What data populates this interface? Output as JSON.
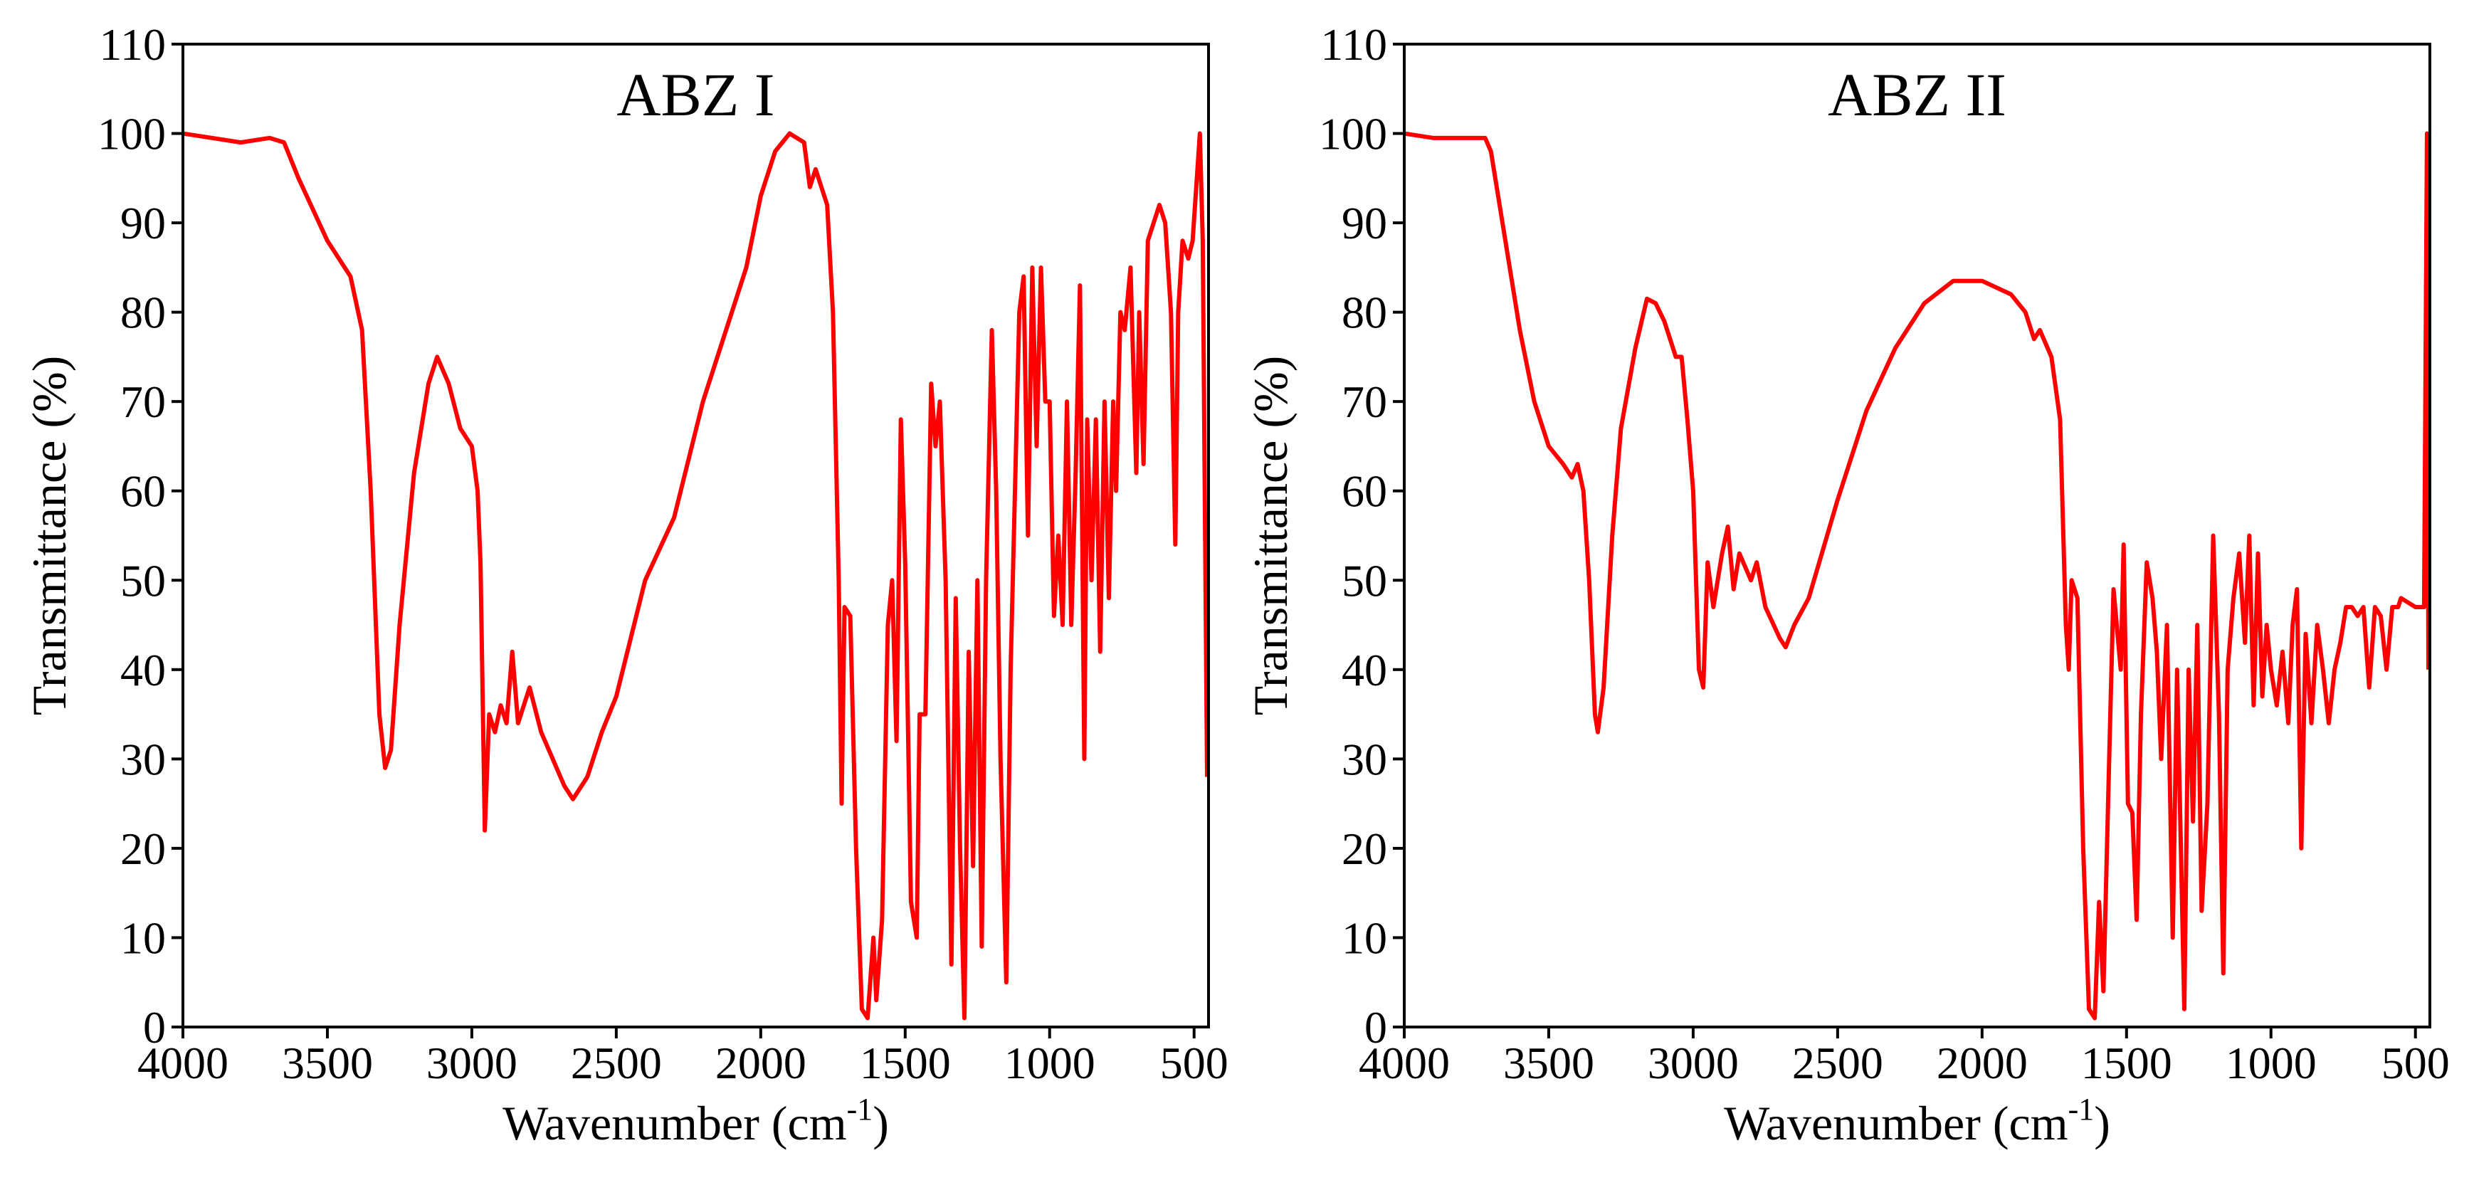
{
  "chart_data": [
    {
      "type": "line",
      "title": "ABZ I",
      "xlabel": [
        "Wavenumber (cm",
        "-1",
        ")"
      ],
      "ylabel": "Transmittance (%)",
      "x": [
        4000,
        3900,
        3800,
        3700,
        3650,
        3600,
        3500,
        3420,
        3380,
        3350,
        3320,
        3300,
        3280,
        3250,
        3200,
        3150,
        3120,
        3080,
        3040,
        3000,
        2980,
        2970,
        2955,
        2940,
        2920,
        2900,
        2880,
        2860,
        2840,
        2800,
        2760,
        2720,
        2680,
        2650,
        2600,
        2550,
        2500,
        2400,
        2300,
        2200,
        2100,
        2050,
        2000,
        1950,
        1900,
        1850,
        1830,
        1810,
        1790,
        1770,
        1750,
        1730,
        1720,
        1710,
        1690,
        1670,
        1650,
        1630,
        1610,
        1600,
        1580,
        1560,
        1545,
        1530,
        1515,
        1500,
        1480,
        1460,
        1450,
        1430,
        1410,
        1395,
        1380,
        1360,
        1340,
        1325,
        1310,
        1295,
        1280,
        1265,
        1250,
        1235,
        1220,
        1200,
        1185,
        1170,
        1150,
        1135,
        1120,
        1105,
        1090,
        1075,
        1060,
        1045,
        1030,
        1015,
        1000,
        985,
        970,
        955,
        940,
        925,
        910,
        895,
        880,
        870,
        855,
        840,
        825,
        810,
        795,
        780,
        770,
        755,
        740,
        720,
        700,
        690,
        675,
        660,
        640,
        620,
        600,
        580,
        565,
        555,
        540,
        520,
        505,
        480,
        470,
        455
      ],
      "series": [
        {
          "color": "#ff0000",
          "values": [
            100,
            99.5,
            99,
            99.5,
            99,
            95,
            88,
            84,
            78,
            60,
            35,
            29,
            31,
            45,
            62,
            72,
            75,
            72,
            67,
            65,
            60,
            52,
            22,
            35,
            33,
            36,
            34,
            42,
            34,
            38,
            33,
            30,
            27,
            25.5,
            28,
            33,
            37,
            50,
            57,
            70,
            80,
            85,
            93,
            98,
            100,
            99,
            94,
            96,
            94,
            92,
            80,
            50,
            25,
            47,
            46,
            20,
            2,
            1,
            10,
            3,
            12,
            45,
            50,
            32,
            68,
            52,
            14,
            10,
            35,
            35,
            72,
            65,
            70,
            50,
            7,
            48,
            20,
            1,
            42,
            18,
            50,
            9,
            50,
            78,
            60,
            30,
            5,
            40,
            60,
            80,
            84,
            55,
            85,
            65,
            85,
            70,
            70,
            46,
            55,
            45,
            70,
            45,
            62,
            83,
            30,
            68,
            50,
            68,
            42,
            70,
            48,
            70,
            60,
            80,
            78,
            85,
            62,
            80,
            63,
            88,
            90,
            92,
            90,
            80,
            54,
            80,
            88,
            86,
            88,
            100,
            88,
            28
          ]
        }
      ],
      "xlim": [
        4000,
        450
      ],
      "xticks": [
        4000,
        3500,
        3000,
        2500,
        2000,
        1500,
        1000,
        500
      ],
      "ylim": [
        0,
        110
      ],
      "yticks": [
        0,
        10,
        20,
        30,
        40,
        50,
        60,
        70,
        80,
        90,
        100,
        110
      ]
    },
    {
      "type": "line",
      "title": "ABZ II",
      "xlabel": [
        "Wavenumber (cm",
        "-1",
        ")"
      ],
      "ylabel": "Transmittance (%)",
      "x": [
        4000,
        3900,
        3800,
        3720,
        3700,
        3650,
        3600,
        3550,
        3500,
        3450,
        3420,
        3400,
        3380,
        3360,
        3340,
        3330,
        3310,
        3280,
        3250,
        3200,
        3160,
        3130,
        3100,
        3060,
        3040,
        3020,
        3000,
        2980,
        2965,
        2950,
        2930,
        2900,
        2880,
        2860,
        2840,
        2800,
        2780,
        2750,
        2700,
        2680,
        2650,
        2600,
        2500,
        2400,
        2300,
        2200,
        2100,
        2000,
        1900,
        1850,
        1820,
        1800,
        1760,
        1730,
        1710,
        1700,
        1690,
        1670,
        1650,
        1630,
        1610,
        1595,
        1580,
        1560,
        1545,
        1520,
        1510,
        1495,
        1480,
        1465,
        1450,
        1430,
        1410,
        1395,
        1380,
        1360,
        1340,
        1325,
        1300,
        1285,
        1270,
        1255,
        1240,
        1220,
        1200,
        1180,
        1165,
        1150,
        1130,
        1110,
        1090,
        1075,
        1060,
        1045,
        1030,
        1015,
        1000,
        980,
        960,
        940,
        925,
        910,
        895,
        880,
        860,
        840,
        820,
        800,
        780,
        760,
        740,
        720,
        700,
        680,
        660,
        640,
        620,
        600,
        580,
        560,
        550,
        500,
        470,
        460,
        455
      ],
      "series": [
        {
          "color": "#ff0000",
          "values": [
            100,
            99.5,
            99.5,
            99.5,
            98,
            88,
            78,
            70,
            65,
            63,
            61.5,
            63,
            60,
            50,
            35,
            33,
            38,
            55,
            67,
            76,
            81.5,
            81,
            79,
            75,
            75,
            68,
            60,
            40,
            38,
            52,
            47,
            53,
            56,
            49,
            53,
            50,
            52,
            47,
            43.5,
            42.5,
            45,
            48,
            59,
            69,
            76,
            81,
            83.5,
            83.5,
            82,
            80,
            77,
            78,
            75,
            68,
            45,
            40,
            50,
            48,
            20,
            2,
            1,
            14,
            4,
            30,
            49,
            40,
            54,
            25,
            24,
            12,
            35,
            52,
            48,
            42,
            30,
            45,
            10,
            40,
            2,
            40,
            23,
            45,
            13,
            25,
            55,
            35,
            6,
            40,
            48,
            53,
            43,
            55,
            36,
            53,
            37,
            45,
            40,
            36,
            42,
            34,
            45,
            49,
            20,
            44,
            34,
            45,
            40,
            34,
            40,
            43,
            47,
            47,
            46,
            47,
            38,
            47,
            46,
            40,
            47,
            47,
            48,
            47,
            47,
            100,
            40
          ]
        }
      ],
      "xlim": [
        4000,
        450
      ],
      "xticks": [
        4000,
        3500,
        3000,
        2500,
        2000,
        1500,
        1000,
        500
      ],
      "ylim": [
        0,
        110
      ],
      "yticks": [
        0,
        10,
        20,
        30,
        40,
        50,
        60,
        70,
        80,
        90,
        100,
        110
      ]
    }
  ]
}
